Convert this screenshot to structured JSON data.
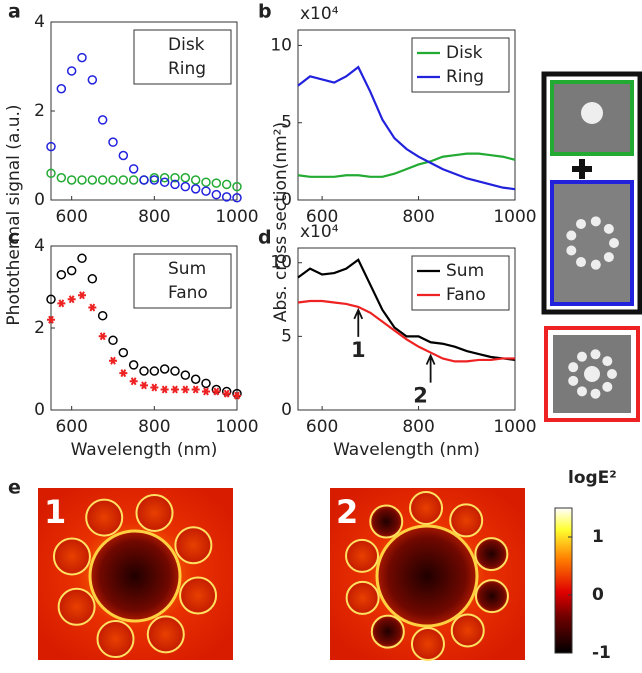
{
  "chart_data": [
    {
      "type": "scatter",
      "label": "a",
      "ylabel": "Photothermal signal (a.u.)",
      "x": [
        550,
        575,
        600,
        625,
        650,
        675,
        700,
        725,
        750,
        775,
        800,
        825,
        850,
        875,
        900,
        925,
        950,
        975,
        1000
      ],
      "series": [
        {
          "name": "Disk",
          "color": "#22aa33",
          "marker": "o",
          "values": [
            0.6,
            0.5,
            0.45,
            0.45,
            0.45,
            0.45,
            0.45,
            0.45,
            0.45,
            0.45,
            0.5,
            0.5,
            0.5,
            0.5,
            0.45,
            0.4,
            0.38,
            0.35,
            0.3
          ]
        },
        {
          "name": "Ring",
          "color": "#2222dd",
          "marker": "o",
          "values": [
            1.2,
            2.5,
            2.9,
            3.2,
            2.7,
            1.8,
            1.3,
            1.0,
            0.7,
            0.45,
            0.45,
            0.4,
            0.35,
            0.3,
            0.25,
            0.2,
            0.12,
            0.07,
            0.05
          ]
        }
      ],
      "xlim": [
        550,
        1000
      ],
      "xticks": [
        600,
        800,
        1000
      ],
      "ylim": [
        0,
        4
      ],
      "yticks": [
        0,
        2,
        4
      ],
      "legend": "upper right"
    },
    {
      "type": "line",
      "label": "b",
      "ylabel": "Abs. cross section(nm²)",
      "multiplier": "x10⁴",
      "x": [
        550,
        575,
        600,
        625,
        650,
        675,
        700,
        725,
        750,
        775,
        800,
        825,
        850,
        875,
        900,
        925,
        950,
        975,
        1000
      ],
      "series": [
        {
          "name": "Disk",
          "color": "#22aa33",
          "values": [
            1.6,
            1.5,
            1.5,
            1.5,
            1.6,
            1.6,
            1.5,
            1.5,
            1.7,
            2.0,
            2.3,
            2.5,
            2.8,
            2.9,
            3.0,
            3.0,
            2.9,
            2.8,
            2.6
          ]
        },
        {
          "name": "Ring",
          "color": "#2222dd",
          "values": [
            7.4,
            8.0,
            7.8,
            7.6,
            8.0,
            8.6,
            7.0,
            5.2,
            4.0,
            3.3,
            2.8,
            2.4,
            2.0,
            1.7,
            1.4,
            1.2,
            1.0,
            0.8,
            0.7
          ]
        }
      ],
      "xlim": [
        550,
        1000
      ],
      "xticks": [
        600,
        800,
        1000
      ],
      "ylim": [
        0,
        11
      ],
      "yticks": [
        0,
        5,
        10
      ],
      "legend": "upper right"
    },
    {
      "type": "scatter",
      "label": "c",
      "xlabel": "Wavelength (nm)",
      "x": [
        550,
        575,
        600,
        625,
        650,
        675,
        700,
        725,
        750,
        775,
        800,
        825,
        850,
        875,
        900,
        925,
        950,
        975,
        1000
      ],
      "series": [
        {
          "name": "Sum",
          "color": "#000000",
          "marker": "o",
          "values": [
            2.7,
            3.3,
            3.4,
            3.7,
            3.2,
            2.3,
            1.7,
            1.4,
            1.1,
            0.95,
            0.95,
            1.0,
            0.95,
            0.85,
            0.75,
            0.65,
            0.5,
            0.45,
            0.4
          ]
        },
        {
          "name": "Fano",
          "color": "#ee2222",
          "marker": "*",
          "values": [
            2.2,
            2.6,
            2.7,
            2.8,
            2.5,
            1.8,
            1.2,
            0.9,
            0.7,
            0.6,
            0.55,
            0.5,
            0.5,
            0.5,
            0.5,
            0.45,
            0.45,
            0.4,
            0.35
          ]
        }
      ],
      "xlim": [
        550,
        1000
      ],
      "xticks": [
        600,
        800,
        1000
      ],
      "ylim": [
        0,
        4
      ],
      "yticks": [
        0,
        2,
        4
      ],
      "legend": "upper right"
    },
    {
      "type": "line",
      "label": "d",
      "xlabel": "Wavelength (nm)",
      "multiplier": "x10⁴",
      "x": [
        550,
        575,
        600,
        625,
        650,
        675,
        700,
        725,
        750,
        775,
        800,
        825,
        850,
        875,
        900,
        925,
        950,
        975,
        1000
      ],
      "series": [
        {
          "name": "Sum",
          "color": "#000000",
          "values": [
            9.0,
            9.6,
            9.2,
            9.3,
            9.6,
            10.2,
            8.5,
            6.8,
            5.6,
            5.0,
            5.0,
            4.6,
            4.5,
            4.3,
            4.0,
            3.8,
            3.6,
            3.5,
            3.4
          ]
        },
        {
          "name": "Fano",
          "color": "#ee2222",
          "values": [
            7.3,
            7.4,
            7.4,
            7.3,
            7.2,
            7.0,
            6.6,
            6.0,
            5.4,
            4.8,
            4.3,
            3.9,
            3.5,
            3.3,
            3.3,
            3.4,
            3.4,
            3.5,
            3.5
          ]
        }
      ],
      "annotations": [
        {
          "text": "1",
          "x": 675
        },
        {
          "text": "2",
          "x": 825
        }
      ],
      "xlim": [
        550,
        1000
      ],
      "xticks": [
        600,
        800,
        1000
      ],
      "ylim": [
        0,
        11
      ],
      "yticks": [
        0,
        5,
        10
      ],
      "legend": "upper right"
    }
  ],
  "field_maps": {
    "label": "e",
    "labels": [
      "1",
      "2"
    ]
  },
  "colorbar": {
    "title": "logE²",
    "lim": [
      -1,
      1.5
    ],
    "ticks": [
      -1,
      0,
      1
    ]
  }
}
